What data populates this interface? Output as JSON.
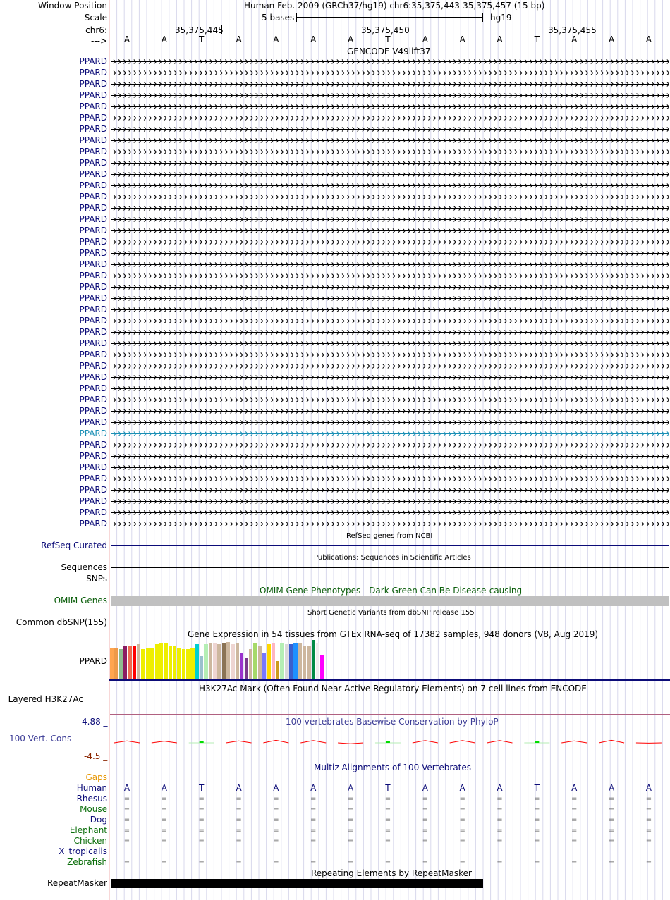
{
  "header": {
    "window_position_label": "Window Position",
    "window_position_value": "Human Feb. 2009 (GRCh37/hg19)   chr6:35,375,443-35,375,457 (15 bp)",
    "scale_label": "Scale",
    "scale_text": "5 bases",
    "scale_assembly": "hg19",
    "chrom_label": "chr6:",
    "coord_labels": [
      "35,375,445",
      "35,375,450",
      "35,375,455"
    ],
    "strand_label": "--->"
  },
  "sequence": [
    "A",
    "A",
    "T",
    "A",
    "A",
    "A",
    "A",
    "T",
    "A",
    "A",
    "A",
    "T",
    "A",
    "A",
    "A"
  ],
  "gencode": {
    "title": "GENCODE V49lift37",
    "gene_labels": [
      "PPARD",
      "PPARD",
      "PPARD",
      "PPARD",
      "PPARD",
      "PPARD",
      "PPARD",
      "PPARD",
      "PPARD",
      "PPARD",
      "PPARD",
      "PPARD",
      "PPARD",
      "PPARD",
      "PPARD",
      "PPARD",
      "PPARD",
      "PPARD",
      "PPARD",
      "PPARD",
      "PPARD",
      "PPARD",
      "PPARD",
      "PPARD",
      "PPARD",
      "PPARD",
      "PPARD",
      "PPARD",
      "PPARD",
      "PPARD",
      "PPARD",
      "PPARD",
      "PPARD",
      "PPARD",
      "PPARD",
      "PPARD",
      "PPARD",
      "PPARD",
      "PPARD",
      "PPARD",
      "PPARD",
      "PPARD"
    ],
    "highlight_index": 33,
    "color": "#0c0c78",
    "highlight_color": "#1a8fb5"
  },
  "refseq": {
    "title": "RefSeq genes from NCBI",
    "label": "RefSeq Curated"
  },
  "publications": {
    "title": "Publications: Sequences in Scientific Articles",
    "label": "Sequences"
  },
  "snps": {
    "label": "SNPs"
  },
  "omim": {
    "title": "OMIM Gene Phenotypes - Dark Green Can Be Disease-causing",
    "label": "OMIM Genes",
    "color": "#0b5e0b"
  },
  "dbsnp": {
    "title": "Short Genetic Variants from dbSNP release 155",
    "label": "Common dbSNP(155)"
  },
  "gtex": {
    "title": "Gene Expression in 54 tissues from GTEx RNA-seq of 17382 samples, 948 donors (V8, Aug 2019)",
    "label": "PPARD",
    "bar_values": [
      0.81,
      0.81,
      0.77,
      0.86,
      0.84,
      0.86,
      0.89,
      0.77,
      0.79,
      0.79,
      0.89,
      0.92,
      0.92,
      0.84,
      0.84,
      0.79,
      0.77,
      0.77,
      0.81,
      0.89,
      0.59,
      0.89,
      0.92,
      0.92,
      0.89,
      0.92,
      0.95,
      0.89,
      0.92,
      0.68,
      0.55,
      0.77,
      0.92,
      0.84,
      0.66,
      0.89,
      0.92,
      0.47,
      0.92,
      0.89,
      0.89,
      0.92,
      0.92,
      0.84,
      0.84,
      1.0,
      0.92,
      0.61
    ],
    "bar_colors": [
      "#ffa54f",
      "#ee9a49",
      "#8fbc8f",
      "#8b1c62",
      "#ee6a50",
      "#ff0000",
      "#cdb79e",
      "#eeee00",
      "#eeee00",
      "#eeee00",
      "#eeee00",
      "#eeee00",
      "#eeee00",
      "#eeee00",
      "#eeee00",
      "#eeee00",
      "#eeee00",
      "#eeee00",
      "#eeee00",
      "#00ced1",
      "#9ac0cd",
      "#b4eeb4",
      "#cdb79e",
      "#eed5d2",
      "#cdb79e",
      "#8b7355",
      "#cdb79e",
      "#eed5d2",
      "#cdb79e",
      "#9a32cd",
      "#7a378b",
      "#cdb79e",
      "#a6d96a",
      "#cdb79e",
      "#7777ff",
      "#ffd700",
      "#ffb6c1",
      "#cd9b1d",
      "#b4eeb4",
      "#d9d9d9",
      "#3a5fcd",
      "#1e90ff",
      "#cdb79e",
      "#cdb79e",
      "#cdb79e",
      "#008b45",
      "#eeeeee",
      "#ff00ff"
    ]
  },
  "h3k27ac": {
    "title": "H3K27Ac Mark (Often Found Near Active Regulatory Elements) on 7 cell lines from ENCODE",
    "label": "Layered H3K27Ac"
  },
  "phylop": {
    "title": "100 vertebrates Basewise Conservation by PhyloP",
    "label": "100 Vert. Cons",
    "max_label": "4.88 _",
    "min_label": "-4.5 _",
    "scores": [
      0.35,
      0.3,
      0.5,
      0.35,
      0.45,
      0.4,
      -0.15,
      0.3,
      0.4,
      0.4,
      0.4,
      0.45,
      0.35,
      0.45,
      -0.05
    ],
    "green_positions": [
      2,
      7,
      11
    ]
  },
  "multiz": {
    "title": "Multiz Alignments of 100 Vertebrates",
    "gaps_label": "Gaps",
    "species": [
      "Human",
      "Rhesus",
      "Mouse",
      "Dog",
      "Elephant",
      "Chicken",
      "X_tropicalis",
      "Zebrafish"
    ],
    "species_colors": [
      "#0c0c78",
      "#0c0c78",
      "#0b6e0b",
      "#0c0c78",
      "#0b6e0b",
      "#0b6e0b",
      "#0c0c78",
      "#0b6e0b"
    ],
    "match_symbol": "=",
    "rows_with_equals": [
      1,
      2,
      3,
      4,
      5,
      7
    ]
  },
  "repeatmasker": {
    "title": "Repeating Elements by RepeatMasker",
    "label": "RepeatMasker"
  },
  "colors": {
    "navy": "#0c0c78",
    "darkgreen": "#0b5e0b",
    "orange": "#e69500",
    "phylop_line": "#ff0000",
    "phylop_green": "#00dd00",
    "grid": "#cfcfe8",
    "left_border": "#f0b0b0"
  }
}
